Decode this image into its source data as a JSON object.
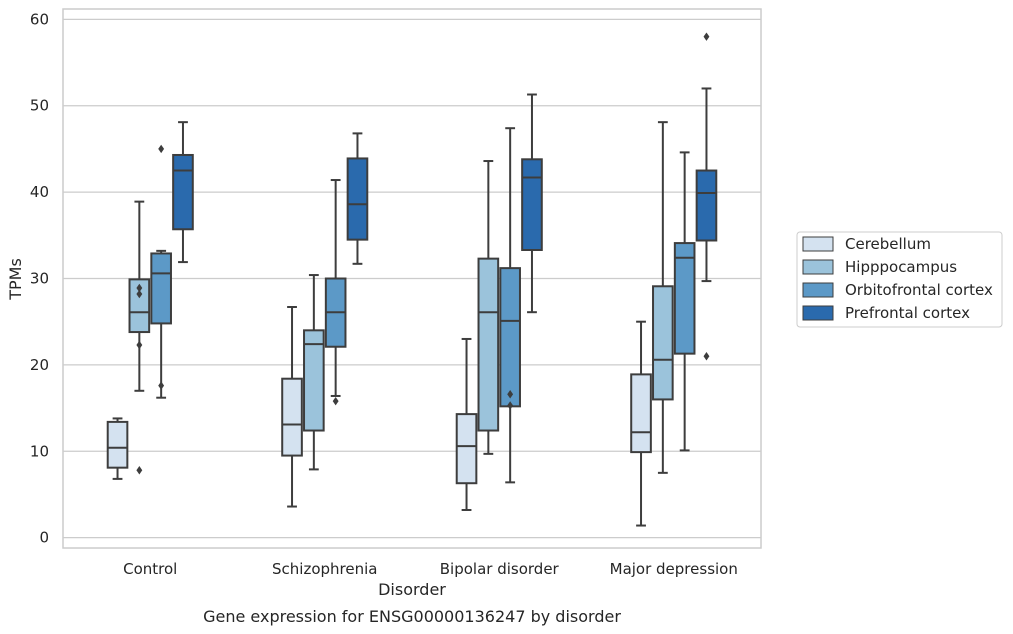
{
  "caption": "Gene expression for ENSG00000136247 by disorder",
  "chart_data": {
    "type": "box",
    "xlabel": "Disorder",
    "ylabel": "TPMs",
    "ylim": [
      -1.2,
      61.2
    ],
    "yticks": [
      0,
      10,
      20,
      30,
      40,
      50,
      60
    ],
    "grid": "horizontal",
    "legend_position": "right",
    "categories": [
      "Control",
      "Schizophrenia",
      "Bipolar disorder",
      "Major depression"
    ],
    "series": [
      {
        "name": "Cerebellum",
        "color": "#d4e2f0",
        "boxes": [
          {
            "whislo": 6.8,
            "q1": 8.1,
            "med": 10.4,
            "q3": 13.4,
            "whishi": 13.8,
            "fliers": []
          },
          {
            "whislo": 3.6,
            "q1": 9.5,
            "med": 13.1,
            "q3": 18.4,
            "whishi": 26.7,
            "fliers": []
          },
          {
            "whislo": 3.2,
            "q1": 6.3,
            "med": 10.6,
            "q3": 14.3,
            "whishi": 23.0,
            "fliers": []
          },
          {
            "whislo": 1.4,
            "q1": 9.9,
            "med": 12.2,
            "q3": 18.9,
            "whishi": 25.0,
            "fliers": []
          }
        ]
      },
      {
        "name": "Hipppocampus",
        "color": "#9bc3db",
        "boxes": [
          {
            "whislo": 17.0,
            "q1": 23.8,
            "med": 26.1,
            "q3": 29.9,
            "whishi": 38.9,
            "fliers": [
              7.8,
              22.3,
              28.2,
              28.9
            ]
          },
          {
            "whislo": 7.9,
            "q1": 12.4,
            "med": 22.4,
            "q3": 24.0,
            "whishi": 30.4,
            "fliers": []
          },
          {
            "whislo": 9.7,
            "q1": 12.4,
            "med": 26.1,
            "q3": 32.3,
            "whishi": 43.6,
            "fliers": []
          },
          {
            "whislo": 7.5,
            "q1": 16.0,
            "med": 20.6,
            "q3": 29.1,
            "whishi": 48.1,
            "fliers": []
          }
        ]
      },
      {
        "name": "Orbitofrontal cortex",
        "color": "#5c99c7",
        "boxes": [
          {
            "whislo": 16.2,
            "q1": 24.8,
            "med": 30.6,
            "q3": 32.9,
            "whishi": 33.2,
            "fliers": [
              17.6,
              45.0
            ]
          },
          {
            "whislo": 16.4,
            "q1": 22.1,
            "med": 26.1,
            "q3": 30.0,
            "whishi": 41.4,
            "fliers": [
              15.8
            ]
          },
          {
            "whislo": 6.4,
            "q1": 15.2,
            "med": 25.1,
            "q3": 31.2,
            "whishi": 47.4,
            "fliers": [
              15.3,
              16.6
            ]
          },
          {
            "whislo": 10.1,
            "q1": 21.3,
            "med": 32.4,
            "q3": 34.1,
            "whishi": 44.6,
            "fliers": []
          }
        ]
      },
      {
        "name": "Prefrontal cortex",
        "color": "#2a6aad",
        "boxes": [
          {
            "whislo": 31.9,
            "q1": 35.7,
            "med": 42.5,
            "q3": 44.3,
            "whishi": 48.1,
            "fliers": []
          },
          {
            "whislo": 31.7,
            "q1": 34.5,
            "med": 38.6,
            "q3": 43.9,
            "whishi": 46.8,
            "fliers": []
          },
          {
            "whislo": 26.1,
            "q1": 33.3,
            "med": 41.7,
            "q3": 43.8,
            "whishi": 51.3,
            "fliers": []
          },
          {
            "whislo": 29.7,
            "q1": 34.4,
            "med": 39.9,
            "q3": 42.5,
            "whishi": 52.0,
            "fliers": [
              21.0,
              58.0
            ]
          }
        ]
      }
    ]
  }
}
